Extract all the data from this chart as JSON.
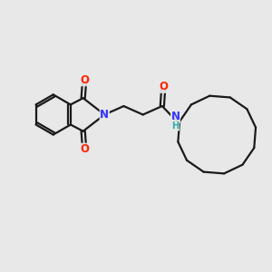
{
  "background_color": "#e8e8e8",
  "bond_color": "#1a1a1a",
  "N_color": "#3333ff",
  "O_color": "#ff2200",
  "H_color": "#33aaaa",
  "line_width": 1.6,
  "font_size_atom": 8.5,
  "fig_w": 3.0,
  "fig_h": 3.0,
  "dpi": 100,
  "xlim": [
    0,
    10
  ],
  "ylim": [
    0,
    10
  ]
}
